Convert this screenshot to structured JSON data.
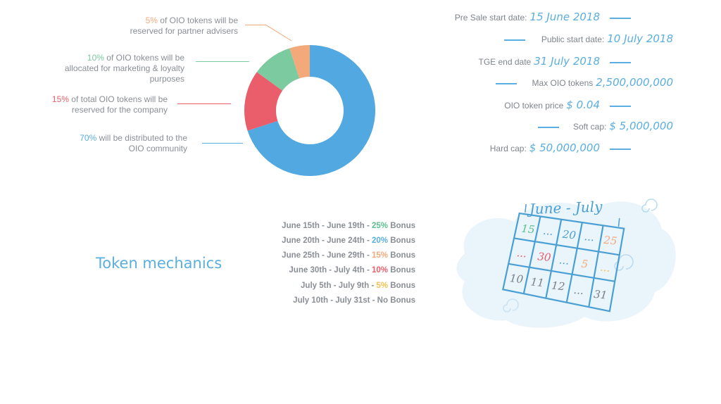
{
  "chart_data": {
    "type": "pie",
    "donut": true,
    "slices": [
      {
        "label_pct": "70%",
        "label_text": " will be distributed to the OIO community",
        "value": 70,
        "color": "#52a8e0"
      },
      {
        "label_pct": "15%",
        "label_text": " of total OIO tokens will be reserved for the company",
        "value": 15,
        "color": "#e95e6a"
      },
      {
        "label_pct": "10%",
        "label_text": " of OIO tokens will be allocated for marketing & loyalty purposes",
        "value": 10,
        "color": "#7ccaa0"
      },
      {
        "label_pct": "5%",
        "label_text": " of OIO tokens will be reserved for partner advisers",
        "value": 5,
        "color": "#f4a97a"
      }
    ]
  },
  "legend": {
    "item5": {
      "pct": "5%",
      "line1": " of OIO tokens will be",
      "line2": "reserved for partner advisers"
    },
    "item10": {
      "pct": "10%",
      "line1": " of OIO tokens will be",
      "line2": "allocated for marketing & loyalty",
      "line3": "purposes"
    },
    "item15": {
      "pct": "15%",
      "line1": " of total OIO tokens will be",
      "line2": "reserved for the company"
    },
    "item70": {
      "pct": "70%",
      "line1": " will be distributed to the",
      "line2": "OIO community"
    }
  },
  "info": [
    {
      "label": "Pre Sale start date:",
      "value": "15 June 2018"
    },
    {
      "label": "Public start date:",
      "value": "10 July 2018"
    },
    {
      "label": "TGE end date",
      "value": "31 July 2018"
    },
    {
      "label": "Max OIO tokens",
      "value": "2,500,000,000"
    },
    {
      "label": "OIO token price",
      "value": "$ 0.04"
    },
    {
      "label": "Soft cap:",
      "value": "$ 5,000,000"
    },
    {
      "label": "Hard cap:",
      "value": "$ 50,000,000"
    }
  ],
  "section_title": "Token mechanics",
  "bonuses": [
    {
      "range": "June 15th - June 19th - ",
      "pct": "25%",
      "suffix": " Bonus",
      "color": "#5bc08e"
    },
    {
      "range": "June 20th - June 24th - ",
      "pct": "20%",
      "suffix": " Bonus",
      "color": "#5aaee0"
    },
    {
      "range": "June 25th - June 29th - ",
      "pct": "15%",
      "suffix": " Bonus",
      "color": "#f4a97a"
    },
    {
      "range": "June 30th - July 4th - ",
      "pct": "10%",
      "suffix": " Bonus",
      "color": "#e95e6a"
    },
    {
      "range": "July 5th - July 9th - ",
      "pct": "5%",
      "suffix": " Bonus",
      "color": "#f2c14e"
    },
    {
      "range": "July 10th - July 31st - No Bonus",
      "pct": "",
      "suffix": "",
      "color": "#8a8f96"
    }
  ],
  "calendar": {
    "title": "June - July",
    "cells": [
      "15",
      "...",
      "20",
      "...",
      "25",
      "...",
      "30",
      "...",
      "5",
      "...",
      "10",
      "11",
      "12",
      "...",
      "31"
    ]
  },
  "colors": {
    "blue": "#5aaee0",
    "red": "#e95e6a",
    "green": "#7ccaa0",
    "orange": "#f4a97a"
  }
}
